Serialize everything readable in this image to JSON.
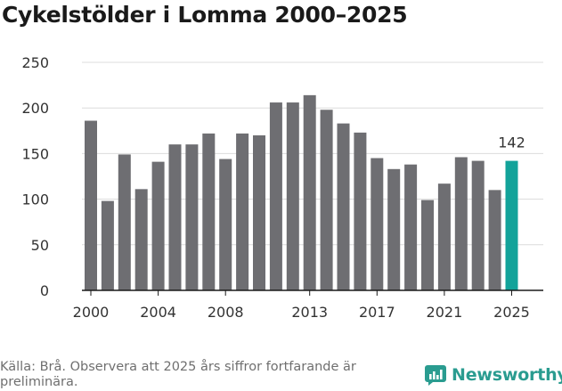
{
  "title": "Cykelstölder i Lomma 2000–2025",
  "source": "Källa: Brå. Observera att 2025 års siffror fortfarande är preliminära.",
  "brand": "Newsworthy",
  "colors": {
    "bar": "#6e6e72",
    "highlight": "#13a39a",
    "brand": "#2a9c90"
  },
  "chart_data": {
    "type": "bar",
    "title": "Cykelstölder i Lomma 2000–2025",
    "xlabel": "",
    "ylabel": "",
    "ylim": [
      0,
      250
    ],
    "yticks": [
      0,
      50,
      100,
      150,
      200,
      250
    ],
    "xticks": [
      2000,
      2004,
      2008,
      2013,
      2017,
      2021,
      2025
    ],
    "categories": [
      2000,
      2001,
      2002,
      2003,
      2004,
      2005,
      2006,
      2007,
      2008,
      2009,
      2010,
      2011,
      2012,
      2013,
      2014,
      2015,
      2016,
      2017,
      2018,
      2019,
      2020,
      2021,
      2022,
      2023,
      2024,
      2025
    ],
    "values": [
      186,
      98,
      149,
      111,
      141,
      160,
      160,
      172,
      144,
      172,
      170,
      206,
      206,
      214,
      198,
      183,
      173,
      145,
      133,
      138,
      99,
      117,
      146,
      142,
      110,
      142
    ],
    "highlight": {
      "category": 2025,
      "label": "142"
    },
    "grid": true
  }
}
